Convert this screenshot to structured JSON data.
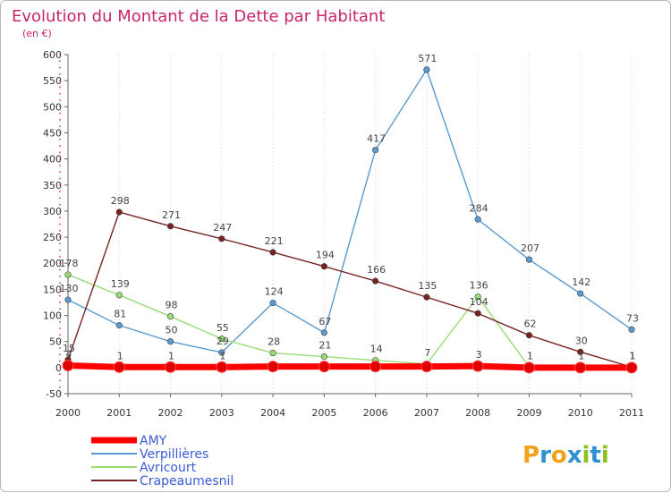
{
  "brand": {
    "letters": [
      "P",
      "r",
      "o",
      "x",
      "i",
      "t",
      "i"
    ],
    "colors": [
      "#f2a21b",
      "#2e8fd1",
      "#f2a21b",
      "#2e8fd1",
      "#8bc21c",
      "#2e8fd1",
      "#8bc21c"
    ]
  },
  "chart_data": {
    "type": "line",
    "title": "Evolution du Montant de la Dette par Habitant",
    "subtitle": "(en €)",
    "x": [
      "2000",
      "2001",
      "2002",
      "2003",
      "2004",
      "2005",
      "2006",
      "2007",
      "2008",
      "2009",
      "2010",
      "2011"
    ],
    "ylim": [
      -50,
      600
    ],
    "yticks": [
      -50,
      0,
      50,
      100,
      150,
      200,
      250,
      300,
      350,
      400,
      450,
      500,
      550,
      600
    ],
    "legend_position": "bottom-left",
    "series": [
      {
        "name": "AMY",
        "color": "#ff0000",
        "values": [
          4,
          1,
          1,
          1,
          2,
          2,
          2,
          2,
          3,
          0,
          0,
          0
        ],
        "labels": [
          "4",
          "1",
          "1",
          "1",
          "",
          "",
          "",
          "",
          "3",
          "",
          "",
          ""
        ]
      },
      {
        "name": "Verpillières",
        "color": "#5a9ad0",
        "values": [
          130,
          81,
          50,
          29,
          124,
          67,
          417,
          571,
          284,
          207,
          142,
          73
        ],
        "labels": [
          "130",
          "81",
          "50",
          "29",
          "124",
          "67",
          "417",
          "571",
          "284",
          "207",
          "142",
          "73"
        ]
      },
      {
        "name": "Avricourt",
        "color": "#99dd77",
        "values": [
          178,
          139,
          98,
          55,
          28,
          21,
          14,
          7,
          136,
          1,
          1,
          1
        ],
        "labels": [
          "178",
          "139",
          "98",
          "55",
          "28",
          "21",
          "14",
          "7",
          "136",
          "1",
          "1",
          "1"
        ]
      },
      {
        "name": "Crapeaumesnil",
        "color": "#772222",
        "values": [
          15,
          298,
          271,
          247,
          221,
          194,
          166,
          135,
          104,
          62,
          30,
          1
        ],
        "labels": [
          "15",
          "298",
          "271",
          "247",
          "221",
          "194",
          "166",
          "135",
          "104",
          "62",
          "30",
          "1"
        ]
      }
    ]
  }
}
